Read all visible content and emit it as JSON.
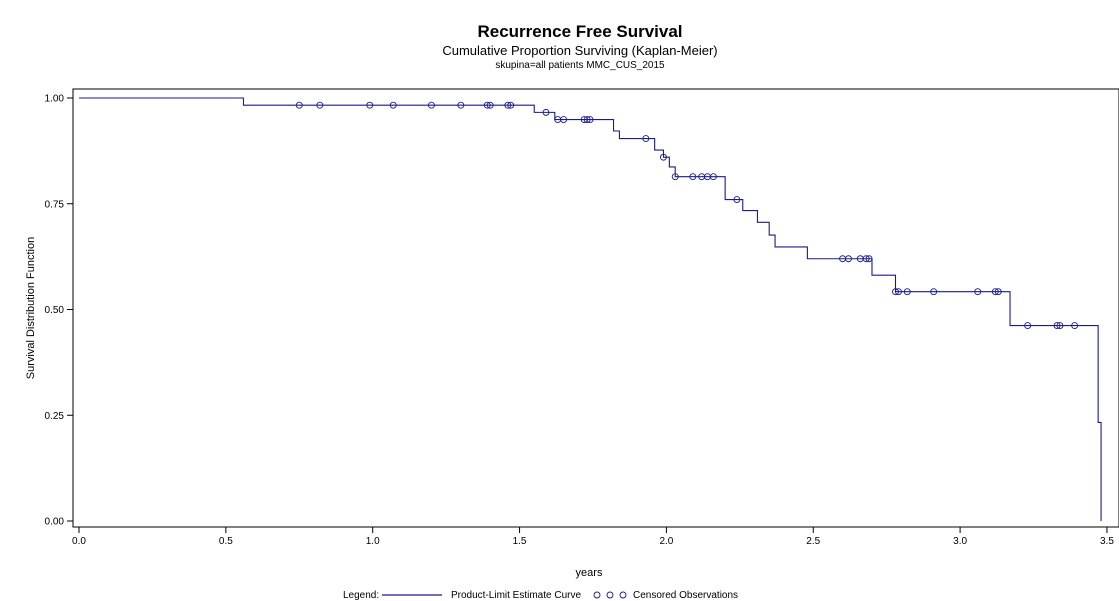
{
  "chart_data": {
    "type": "line",
    "title": "Recurrence Free Survival",
    "subtitle": "Cumulative Proportion Surviving (Kaplan-Meier)",
    "subtitle2": "skupina=all patients MMC_CUS_2015",
    "xlabel": "years",
    "ylabel": "Survival Distribution Function",
    "xlim": [
      0,
      3.5
    ],
    "ylim": [
      0,
      1
    ],
    "x_ticks": [
      "0.0",
      "0.5",
      "1.0",
      "1.5",
      "2.0",
      "2.5",
      "3.0",
      "3.5"
    ],
    "y_ticks": [
      "0.00",
      "0.25",
      "0.50",
      "0.75",
      "1.00"
    ],
    "series": [
      {
        "name": "Product-Limit Estimate Curve",
        "color": "#1a1a8c",
        "step_points": [
          [
            0,
            1.0
          ],
          [
            0.56,
            0.983
          ],
          [
            1.55,
            0.966
          ],
          [
            1.62,
            0.949
          ],
          [
            1.82,
            0.922
          ],
          [
            1.84,
            0.904
          ],
          [
            1.96,
            0.877
          ],
          [
            1.99,
            0.86
          ],
          [
            2.01,
            0.837
          ],
          [
            2.03,
            0.814
          ],
          [
            2.2,
            0.791
          ],
          [
            2.2,
            0.76
          ],
          [
            2.26,
            0.734
          ],
          [
            2.31,
            0.706
          ],
          [
            2.35,
            0.676
          ],
          [
            2.37,
            0.648
          ],
          [
            2.48,
            0.62
          ],
          [
            2.7,
            0.581
          ],
          [
            2.78,
            0.542
          ],
          [
            3.17,
            0.462
          ],
          [
            3.47,
            0.233
          ],
          [
            3.48,
            0.0
          ]
        ],
        "x_end": 3.48
      },
      {
        "name": "Censored Observations",
        "marker": "circle",
        "color": "#1a1a8c",
        "points": [
          [
            0.75,
            0.983
          ],
          [
            0.82,
            0.983
          ],
          [
            0.99,
            0.983
          ],
          [
            1.07,
            0.983
          ],
          [
            1.2,
            0.983
          ],
          [
            1.3,
            0.983
          ],
          [
            1.39,
            0.983
          ],
          [
            1.4,
            0.983
          ],
          [
            1.46,
            0.983
          ],
          [
            1.47,
            0.983
          ],
          [
            1.59,
            0.966
          ],
          [
            1.63,
            0.949
          ],
          [
            1.65,
            0.949
          ],
          [
            1.72,
            0.949
          ],
          [
            1.73,
            0.949
          ],
          [
            1.74,
            0.949
          ],
          [
            1.93,
            0.904
          ],
          [
            1.99,
            0.86
          ],
          [
            2.03,
            0.814
          ],
          [
            2.09,
            0.814
          ],
          [
            2.12,
            0.814
          ],
          [
            2.14,
            0.814
          ],
          [
            2.16,
            0.814
          ],
          [
            2.24,
            0.76
          ],
          [
            2.6,
            0.62
          ],
          [
            2.62,
            0.62
          ],
          [
            2.66,
            0.62
          ],
          [
            2.68,
            0.62
          ],
          [
            2.69,
            0.62
          ],
          [
            2.78,
            0.542
          ],
          [
            2.79,
            0.542
          ],
          [
            2.82,
            0.542
          ],
          [
            2.91,
            0.542
          ],
          [
            3.06,
            0.542
          ],
          [
            3.12,
            0.542
          ],
          [
            3.13,
            0.542
          ],
          [
            3.23,
            0.462
          ],
          [
            3.33,
            0.462
          ],
          [
            3.34,
            0.462
          ],
          [
            3.39,
            0.462
          ]
        ]
      }
    ],
    "legend": {
      "label": "Legend:",
      "curve_label": "Product-Limit Estimate Curve",
      "censored_label": "Censored Observations",
      "position": "bottom"
    }
  }
}
